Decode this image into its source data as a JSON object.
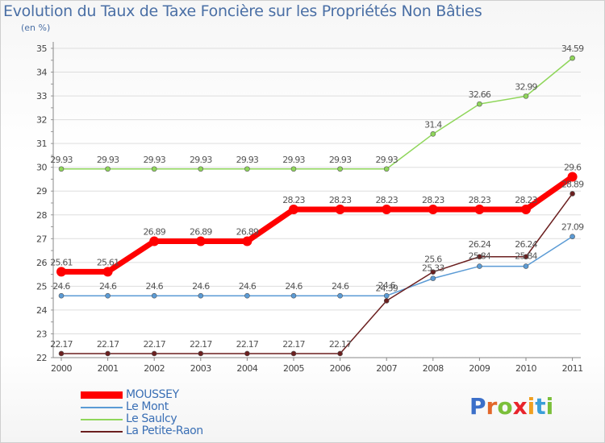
{
  "title": "Evolution du Taux de Taxe Foncière sur les Propriétés Non Bâties",
  "unit_label": "(en %)",
  "logo_text": "Proxiti",
  "chart_data": {
    "type": "line",
    "title": "Evolution du Taux de Taxe Foncière sur les Propriétés Non Bâties",
    "ylabel": "(en %)",
    "xlabel": "",
    "x": [
      "2000",
      "2001",
      "2002",
      "2003",
      "2004",
      "2005",
      "2006",
      "2007",
      "2008",
      "2009",
      "2010",
      "2011"
    ],
    "ylim": [
      22,
      35
    ],
    "yticks": [
      "22",
      "23",
      "24",
      "25",
      "26",
      "27",
      "28",
      "29",
      "30",
      "31",
      "32",
      "33",
      "34",
      "35"
    ],
    "legend_position": "bottom-left",
    "series": [
      {
        "name": "MOUSSEY",
        "color": "#ff0000",
        "values": [
          25.61,
          25.61,
          26.89,
          26.89,
          26.89,
          28.23,
          28.23,
          28.23,
          28.23,
          28.23,
          28.23,
          29.6
        ],
        "labels": [
          "25.61",
          "25.61",
          "26.89",
          "26.89",
          "26.89",
          "28.23",
          "28.23",
          "28.23",
          "28.23",
          "28.23",
          "28.23",
          "29.6"
        ]
      },
      {
        "name": "Le Mont",
        "color": "#5b9bd5",
        "values": [
          24.6,
          24.6,
          24.6,
          24.6,
          24.6,
          24.6,
          24.6,
          24.6,
          25.33,
          25.84,
          25.84,
          27.09
        ],
        "labels": [
          "24.6",
          "24.6",
          "24.6",
          "24.6",
          "24.6",
          "24.6",
          "24.6",
          "24.6",
          "25.33",
          "25.84",
          "25.84",
          "27.09"
        ]
      },
      {
        "name": "Le Saulcy",
        "color": "#8fd65a",
        "values": [
          29.93,
          29.93,
          29.93,
          29.93,
          29.93,
          29.93,
          29.93,
          29.93,
          31.4,
          32.66,
          32.99,
          34.59
        ],
        "labels": [
          "29.93",
          "29.93",
          "29.93",
          "29.93",
          "29.93",
          "29.93",
          "29.93",
          "29.93",
          "31.4",
          "32.66",
          "32.99",
          "34.59"
        ]
      },
      {
        "name": "La Petite-Raon",
        "color": "#6b1f1f",
        "values": [
          22.17,
          22.17,
          22.17,
          22.17,
          22.17,
          22.17,
          22.17,
          24.39,
          25.6,
          26.24,
          26.24,
          28.89
        ],
        "labels": [
          "22.17",
          "22.17",
          "22.17",
          "22.17",
          "22.17",
          "22.17",
          "22.17",
          "24.39",
          "25.6",
          "26.24",
          "26.24",
          "28.89"
        ]
      }
    ]
  }
}
